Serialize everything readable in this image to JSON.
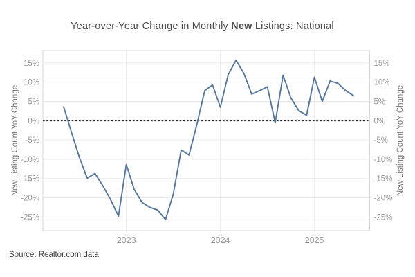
{
  "title": {
    "prefix": "Year-over-Year Change in Monthly ",
    "emphasis": "New",
    "suffix": " Listings: National"
  },
  "source": "Source: Realtor.com data",
  "axes": {
    "y_label": "New Listing Count YoY Change",
    "y_label_right": "New Listing Count YoY Change",
    "y_ticks": [
      {
        "label": "15%",
        "value": 15
      },
      {
        "label": "10%",
        "value": 10
      },
      {
        "label": "5%",
        "value": 5
      },
      {
        "label": "0%",
        "value": 0
      },
      {
        "label": "-5%",
        "value": -5
      },
      {
        "label": "-10%",
        "value": -10
      },
      {
        "label": "-15%",
        "value": -15
      },
      {
        "label": "-20%",
        "value": -20
      },
      {
        "label": "-25%",
        "value": -25
      }
    ],
    "x_ticks": [
      {
        "label": "2023",
        "month_index": 8
      },
      {
        "label": "2024",
        "month_index": 20
      },
      {
        "label": "2025",
        "month_index": 32
      }
    ]
  },
  "colors": {
    "line": "#53779f",
    "grid": "#ececec",
    "plot_border": "#d6d6d6",
    "zero_line": "#2b2b2b",
    "tick_label": "#9b9b9b",
    "axis_title": "#757575",
    "title_text": "#4a4a4a"
  },
  "chart_data": {
    "type": "line",
    "title": "Year-over-Year Change in Monthly New Listings: National",
    "series_name": "New Listing Count YoY Change",
    "xlabel": "",
    "ylabel": "New Listing Count YoY Change",
    "ylim": [
      -28.5,
      18.2
    ],
    "y_tick_step": 5,
    "grid": "horizontal and year gridlines, light gray",
    "zero_line": "black dashed at 0%",
    "legend_position": "none",
    "x": [
      "May 2022",
      "Jun 2022",
      "Jul 2022",
      "Aug 2022",
      "Sep 2022",
      "Oct 2022",
      "Nov 2022",
      "Dec 2022",
      "Jan 2023",
      "Feb 2023",
      "Mar 2023",
      "Apr 2023",
      "May 2023",
      "Jun 2023",
      "Jul 2023",
      "Aug 2023",
      "Sep 2023",
      "Oct 2023",
      "Nov 2023",
      "Dec 2023",
      "Jan 2024",
      "Feb 2024",
      "Mar 2024",
      "Apr 2024",
      "May 2024",
      "Jun 2024",
      "Jul 2024",
      "Aug 2024",
      "Sep 2024",
      "Oct 2024",
      "Nov 2024",
      "Dec 2024",
      "Jan 2025",
      "Feb 2025",
      "Mar 2025",
      "Apr 2025",
      "May 2025",
      "Jun 2025"
    ],
    "values": [
      3.6,
      -3.0,
      -9.5,
      -14.9,
      -13.7,
      -16.9,
      -20.5,
      -24.8,
      -11.4,
      -17.8,
      -21.2,
      -22.5,
      -23.2,
      -25.7,
      -19.0,
      -7.6,
      -8.9,
      -1.0,
      7.8,
      9.3,
      3.5,
      12.0,
      15.7,
      12.3,
      6.9,
      7.8,
      8.8,
      -0.5,
      11.8,
      5.9,
      2.6,
      1.4,
      11.3,
      5.0,
      10.3,
      9.7,
      7.8,
      6.5
    ]
  }
}
